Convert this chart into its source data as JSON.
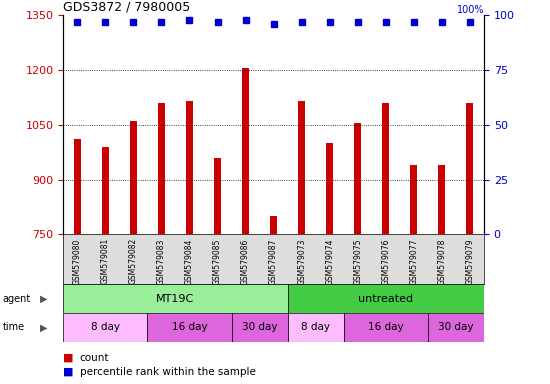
{
  "title": "GDS3872 / 7980005",
  "samples": [
    "GSM579080",
    "GSM579081",
    "GSM579082",
    "GSM579083",
    "GSM579084",
    "GSM579085",
    "GSM579086",
    "GSM579087",
    "GSM579073",
    "GSM579074",
    "GSM579075",
    "GSM579076",
    "GSM579077",
    "GSM579078",
    "GSM579079"
  ],
  "counts": [
    1010,
    990,
    1060,
    1110,
    1115,
    960,
    1205,
    800,
    1115,
    1000,
    1055,
    1110,
    940,
    940,
    1110
  ],
  "percentiles": [
    97,
    97,
    97,
    97,
    98,
    97,
    98,
    96,
    97,
    97,
    97,
    97,
    97,
    97,
    97
  ],
  "bar_color": "#cc0000",
  "dot_color": "#0000cc",
  "ylim_left": [
    750,
    1350
  ],
  "yticks_left": [
    750,
    900,
    1050,
    1200,
    1350
  ],
  "ylim_right": [
    0,
    100
  ],
  "yticks_right": [
    0,
    25,
    50,
    75,
    100
  ],
  "grid_lines": [
    900,
    1050,
    1200
  ],
  "agent_row": [
    {
      "label": "MT19C",
      "start": 0,
      "end": 8,
      "color": "#99ee99"
    },
    {
      "label": "untreated",
      "start": 8,
      "end": 15,
      "color": "#44cc44"
    }
  ],
  "time_row": [
    {
      "label": "8 day",
      "start": 0,
      "end": 3,
      "color": "#ffbbff"
    },
    {
      "label": "16 day",
      "start": 3,
      "end": 6,
      "color": "#dd66dd"
    },
    {
      "label": "30 day",
      "start": 6,
      "end": 8,
      "color": "#dd66dd"
    },
    {
      "label": "8 day",
      "start": 8,
      "end": 10,
      "color": "#ffbbff"
    },
    {
      "label": "16 day",
      "start": 10,
      "end": 13,
      "color": "#dd66dd"
    },
    {
      "label": "30 day",
      "start": 13,
      "end": 15,
      "color": "#dd66dd"
    }
  ],
  "legend_count_color": "#cc0000",
  "legend_dot_color": "#0000cc",
  "background_color": "#ffffff",
  "left_axis_color": "#cc0000",
  "right_axis_color": "#0000cc",
  "tick_bg_color": "#dddddd"
}
